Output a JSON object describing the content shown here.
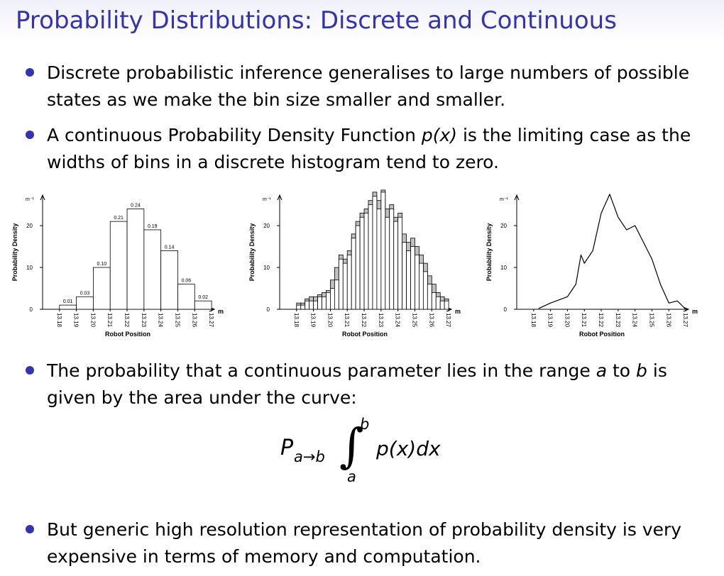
{
  "title": "Probability Distributions: Discrete and Continuous",
  "bullets": [
    [
      "Discrete probabilistic inference generalises to large numbers of possible states as we make the bin size smaller and smaller."
    ],
    [
      "A continuous Probability Density Function ",
      "p(x)",
      " is the limiting case as the widths of bins in a discrete histogram tend to zero."
    ],
    [
      "The probability that a continuous parameter lies in the range ",
      "a",
      " to ",
      "b",
      " is given by the area under the curve:"
    ],
    [
      "But generic high resolution representation of probability density is very expensive in terms of memory and computation."
    ]
  ],
  "formula": {
    "P": "P",
    "sub": "a→b",
    "upper": "b",
    "lower": "a",
    "integrand": "p(x)dx"
  },
  "chart_data": [
    {
      "type": "histogram",
      "ylabel": "Probability Density",
      "xlabel": "Robot Position",
      "yunit": "m⁻¹",
      "xunit": "m",
      "bins": [
        13.18,
        13.19,
        13.2,
        13.21,
        13.22,
        13.23,
        13.24,
        13.25,
        13.26,
        13.27
      ],
      "values": [
        1,
        3,
        10,
        21,
        24,
        19,
        14,
        6,
        2
      ],
      "value_labels": [
        "0.01",
        "0.03",
        "0.10",
        "0.21",
        "0.24",
        "0.19",
        "0.14",
        "0.06",
        "0.02"
      ],
      "color": "#ffffff",
      "xlim": [
        13.17,
        13.275
      ],
      "ylim": [
        0,
        27.3
      ],
      "yticks": [
        0,
        10,
        20
      ],
      "xticks": [
        13.18,
        13.19,
        {
          "value": 13.2,
          "label": "13.20"
        },
        13.21,
        13.22,
        13.23,
        13.24,
        13.25,
        13.26,
        13.27
      ]
    },
    {
      "type": "histogram",
      "ylabel": "Probability Density",
      "xlabel": "Robot Position",
      "yunit": "m⁻¹",
      "xunit": "m",
      "bins": [
        13.18,
        13.1825,
        13.185,
        13.1875,
        13.19,
        13.1925,
        13.195,
        13.1975,
        13.2,
        13.2025,
        13.205,
        13.2075,
        13.21,
        13.2125,
        13.215,
        13.2175,
        13.22,
        13.2225,
        13.225,
        13.2275,
        13.23,
        13.2325,
        13.235,
        13.2375,
        13.24,
        13.2425,
        13.245,
        13.2475,
        13.25,
        13.2525,
        13.255,
        13.2575,
        13.26,
        13.2625,
        13.265,
        13.2675,
        13.27
      ],
      "series": [
        {
          "color": "#c0c0c0",
          "values": [
            1.5,
            1.5,
            2.5,
            3,
            3,
            3.5,
            4,
            4.5,
            7,
            10,
            13,
            12,
            14,
            18,
            21,
            23,
            24,
            26,
            28,
            26,
            28.5,
            24,
            25,
            22,
            23,
            18,
            16,
            17,
            15,
            13,
            11,
            8,
            6,
            4,
            3,
            2.5
          ]
        },
        {
          "color": "#ffffff",
          "values": [
            1,
            1,
            2,
            2,
            2,
            3,
            3,
            4,
            5,
            7,
            12,
            11,
            13,
            17,
            20,
            22,
            23,
            25,
            27,
            24,
            28,
            22,
            24,
            21,
            22,
            16,
            14,
            15,
            13,
            11,
            9,
            6,
            4,
            3,
            2,
            2
          ]
        }
      ],
      "xlim": [
        13.17,
        13.275
      ],
      "ylim": [
        0,
        27.3
      ],
      "yticks": [
        0,
        10,
        20
      ],
      "xticks": [
        13.18,
        13.19,
        {
          "value": 13.2,
          "label": "13.20"
        },
        13.21,
        13.22,
        13.23,
        13.24,
        13.25,
        13.26,
        13.27
      ]
    },
    {
      "type": "line",
      "ylabel": "Probability Density",
      "xlabel": "Robot Position",
      "yunit": "m⁻¹",
      "xunit": "m",
      "x": [
        13.183,
        13.19,
        13.2,
        13.205,
        13.208,
        13.21,
        13.215,
        13.22,
        13.225,
        13.23,
        13.235,
        13.24,
        13.245,
        13.25,
        13.255,
        13.26,
        13.265,
        13.27
      ],
      "values": [
        0.2,
        1.5,
        3,
        6,
        13,
        11,
        14,
        23,
        27.5,
        22,
        19,
        20,
        16,
        12,
        6,
        1.5,
        2,
        0
      ],
      "color": "#000000",
      "xlim": [
        13.17,
        13.275
      ],
      "ylim": [
        0,
        27.3
      ],
      "yticks": [
        0,
        10,
        20
      ],
      "xticks": [
        13.18,
        13.19,
        {
          "value": 13.2,
          "label": "13.20"
        },
        13.21,
        13.22,
        13.23,
        13.24,
        13.25,
        13.26,
        13.27
      ]
    }
  ]
}
